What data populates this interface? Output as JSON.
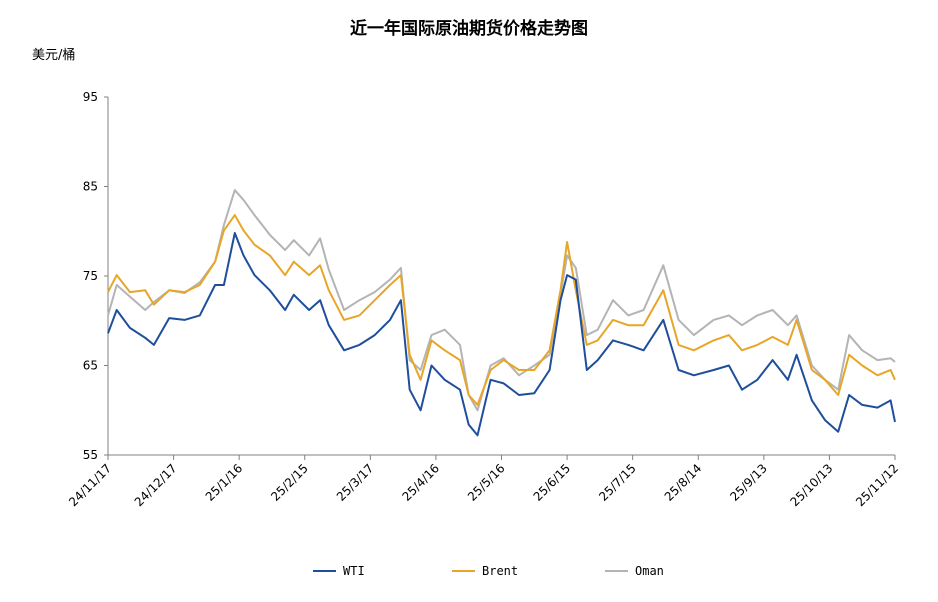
{
  "chart_data": {
    "type": "line",
    "title": "近一年国际原油期货价格走势图",
    "ylabel": "美元/桶",
    "xlabel": "",
    "ylim": [
      55,
      95
    ],
    "yticks": [
      "55",
      "65",
      "75",
      "85",
      "95"
    ],
    "xticks": [
      "24/11/17",
      "24/12/17",
      "25/1/16",
      "25/2/15",
      "25/3/17",
      "25/4/16",
      "25/5/16",
      "25/6/15",
      "25/7/15",
      "25/8/14",
      "25/9/13",
      "25/10/13",
      "25/11/12"
    ],
    "xtick_dates": [
      "2024-11-17",
      "2024-12-17",
      "2025-01-16",
      "2025-02-15",
      "2025-03-17",
      "2025-04-16",
      "2025-05-16",
      "2025-06-15",
      "2025-07-15",
      "2025-08-14",
      "2025-09-13",
      "2025-10-13",
      "2025-11-12"
    ],
    "grid": false,
    "legend_position": "bottom",
    "x": [
      "2024-11-17",
      "2024-11-21",
      "2024-11-27",
      "2024-12-04",
      "2024-12-08",
      "2024-12-15",
      "2024-12-22",
      "2024-12-29",
      "2025-01-05",
      "2025-01-09",
      "2025-01-14",
      "2025-01-18",
      "2025-01-23",
      "2025-01-30",
      "2025-02-06",
      "2025-02-10",
      "2025-02-17",
      "2025-02-22",
      "2025-02-26",
      "2025-03-05",
      "2025-03-12",
      "2025-03-19",
      "2025-03-26",
      "2025-03-31",
      "2025-04-04",
      "2025-04-09",
      "2025-04-14",
      "2025-04-20",
      "2025-04-27",
      "2025-05-01",
      "2025-05-05",
      "2025-05-11",
      "2025-05-17",
      "2025-05-24",
      "2025-05-31",
      "2025-06-07",
      "2025-06-12",
      "2025-06-15",
      "2025-06-19",
      "2025-06-24",
      "2025-06-29",
      "2025-07-06",
      "2025-07-13",
      "2025-07-20",
      "2025-07-29",
      "2025-08-05",
      "2025-08-12",
      "2025-08-21",
      "2025-08-28",
      "2025-09-03",
      "2025-09-10",
      "2025-09-17",
      "2025-09-24",
      "2025-09-28",
      "2025-10-05",
      "2025-10-11",
      "2025-10-17",
      "2025-10-22",
      "2025-10-28",
      "2025-11-04",
      "2025-11-10",
      "2025-11-12"
    ],
    "series": [
      {
        "name": "WTI",
        "color": "#1f4e9c",
        "values": [
          68.6,
          71.2,
          69.2,
          68.1,
          67.3,
          70.3,
          70.1,
          70.6,
          74.0,
          74.0,
          79.8,
          77.3,
          75.1,
          73.4,
          71.2,
          72.9,
          71.2,
          72.3,
          69.5,
          66.7,
          67.3,
          68.4,
          70.1,
          72.3,
          62.3,
          60.0,
          65.0,
          63.4,
          62.3,
          58.4,
          57.2,
          63.4,
          63.0,
          61.7,
          61.9,
          64.5,
          72.3,
          75.1,
          74.6,
          64.5,
          65.6,
          67.8,
          67.3,
          66.7,
          70.1,
          64.5,
          63.9,
          64.5,
          65.0,
          62.3,
          63.4,
          65.6,
          63.4,
          66.2,
          61.1,
          58.9,
          57.6,
          61.7,
          60.6,
          60.3,
          61.1,
          58.7
        ]
      },
      {
        "name": "Brent",
        "color": "#e8a628",
        "values": [
          73.2,
          75.1,
          73.2,
          73.4,
          71.8,
          73.4,
          73.2,
          74.0,
          76.6,
          80.1,
          81.8,
          80.1,
          78.5,
          77.3,
          75.1,
          76.6,
          75.1,
          76.2,
          73.4,
          70.1,
          70.6,
          72.3,
          74.0,
          75.1,
          66.2,
          63.4,
          67.8,
          66.7,
          65.6,
          61.7,
          60.6,
          64.5,
          65.6,
          64.5,
          64.5,
          66.7,
          73.4,
          78.8,
          73.4,
          67.3,
          67.8,
          70.1,
          69.5,
          69.5,
          73.4,
          67.3,
          66.7,
          67.8,
          68.4,
          66.7,
          67.3,
          68.2,
          67.3,
          70.1,
          64.5,
          63.4,
          61.7,
          66.2,
          65.0,
          63.9,
          64.5,
          63.4
        ]
      },
      {
        "name": "Oman",
        "color": "#b4b4b4",
        "values": [
          70.6,
          74.0,
          72.7,
          71.2,
          72.1,
          73.4,
          73.1,
          74.3,
          76.6,
          80.7,
          84.6,
          83.5,
          81.8,
          79.6,
          77.9,
          79.0,
          77.3,
          79.2,
          75.7,
          71.2,
          72.3,
          73.2,
          74.6,
          75.9,
          65.6,
          64.5,
          68.4,
          69.0,
          67.3,
          61.7,
          60.0,
          65.0,
          65.8,
          63.9,
          65.0,
          66.2,
          72.9,
          77.3,
          75.9,
          68.4,
          69.0,
          72.3,
          70.6,
          71.2,
          76.2,
          70.1,
          68.4,
          70.1,
          70.6,
          69.5,
          70.6,
          71.2,
          69.5,
          70.6,
          65.0,
          63.4,
          62.3,
          68.4,
          66.7,
          65.6,
          65.8,
          65.4
        ]
      }
    ]
  }
}
